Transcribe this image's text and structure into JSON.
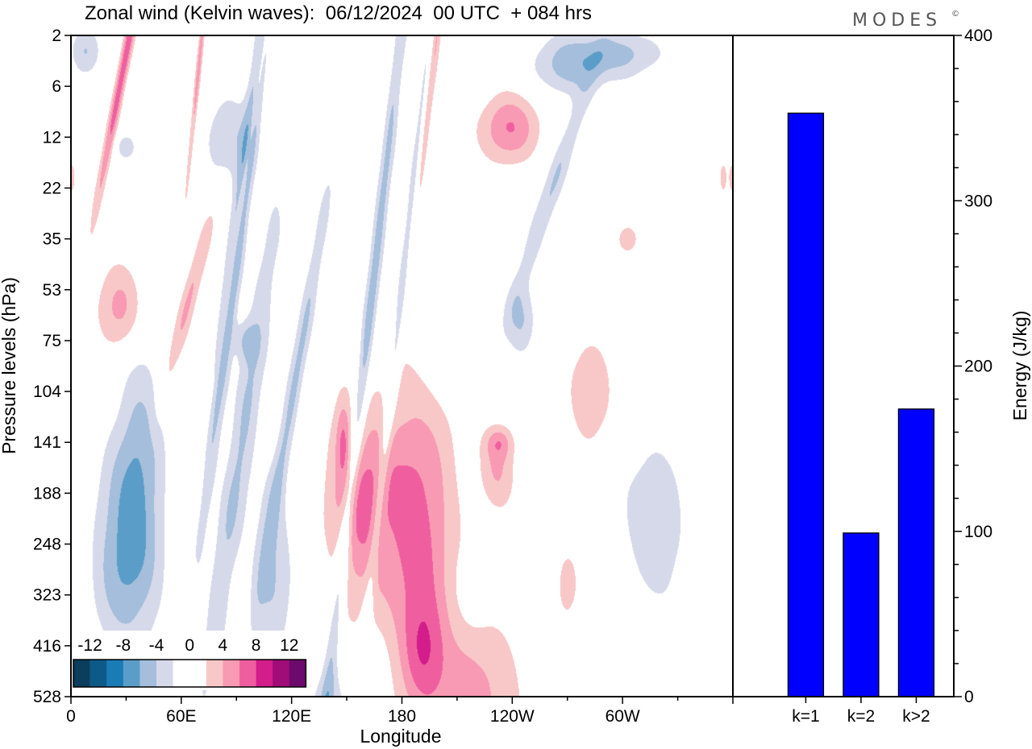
{
  "header": {
    "title": "Zonal wind (Kelvin waves):  06/12/2024  00 UTC  + 084 hrs",
    "brand": "MODES",
    "brand_mark": "©"
  },
  "chart_data": [
    {
      "type": "heatmap",
      "title": "Zonal wind (Kelvin waves):  06/12/2024  00 UTC  + 084 hrs",
      "xlabel": "Longitude",
      "ylabel": "Pressure levels (hPa)",
      "x_ticks": [
        "0",
        "60E",
        "120E",
        "180",
        "120W",
        "60W"
      ],
      "y_ticks": [
        "2",
        "6",
        "12",
        "22",
        "35",
        "53",
        "75",
        "104",
        "141",
        "188",
        "248",
        "323",
        "416",
        "528"
      ],
      "colorbar": {
        "labels": [
          "-12",
          "-8",
          "-4",
          "0",
          "4",
          "8",
          "12"
        ],
        "colors": [
          "#0b3d5c",
          "#0d5a88",
          "#1a7bb5",
          "#5b9dc9",
          "#a4bedb",
          "#d6d9ea",
          "#ffffff",
          "#ffffff",
          "#f8c8c8",
          "#f89ab3",
          "#ef5fa0",
          "#d21d8a",
          "#a00d78",
          "#6d0a6d"
        ]
      },
      "negative_features": [
        {
          "lon": 90,
          "lev": 4.1,
          "w": 19,
          "h": 1.3,
          "tilt": -28,
          "amp": 6.5
        },
        {
          "lon": 38,
          "lev": 9.0,
          "w": 13,
          "h": 2.8,
          "tilt": 0,
          "amp": 5.5
        },
        {
          "lon": 25,
          "lev": 10.2,
          "w": 14,
          "h": 2.0,
          "tilt": 0,
          "amp": 4.5
        },
        {
          "lon": 92,
          "lev": 8.2,
          "w": 23,
          "h": 1.7,
          "tilt": -22,
          "amp": 4.5
        },
        {
          "lon": 160,
          "lev": 6.3,
          "w": 30,
          "h": 1.2,
          "tilt": -32,
          "amp": 5.2
        },
        {
          "lon": 180,
          "lev": 5.2,
          "w": 22,
          "h": 1.0,
          "tilt": -32,
          "amp": 4.5
        },
        {
          "lon": 122,
          "lev": 6.8,
          "w": 20,
          "h": 0.9,
          "tilt": -20,
          "amp": 4.5
        },
        {
          "lon": 110,
          "lev": 10.6,
          "w": 11,
          "h": 1.7,
          "tilt": 0,
          "amp": 4.2
        },
        {
          "lon": 85,
          "lev": 2.0,
          "w": 12,
          "h": 0.9,
          "tilt": 0,
          "amp": 4.0
        },
        {
          "lon": 272,
          "lev": 0.6,
          "w": 22,
          "h": 0.6,
          "tilt": 0,
          "amp": 4.5
        },
        {
          "lon": 300,
          "lev": 0.35,
          "w": 25,
          "h": 0.45,
          "tilt": 0,
          "amp": 4.0
        },
        {
          "lon": 8,
          "lev": 0.3,
          "w": 8,
          "h": 0.5,
          "tilt": 0,
          "amp": 4.5
        },
        {
          "lon": 262,
          "lev": 3.0,
          "w": 22,
          "h": 0.6,
          "tilt": -10,
          "amp": 4.0
        },
        {
          "lon": 318,
          "lev": 9.6,
          "w": 16,
          "h": 1.5,
          "tilt": 0,
          "amp": 4.2
        },
        {
          "lon": 245,
          "lev": 5.6,
          "w": 8,
          "h": 0.7,
          "tilt": 0,
          "amp": 3.7
        },
        {
          "lon": 140,
          "lev": 13.3,
          "w": 10,
          "h": 0.8,
          "tilt": 0,
          "amp": 3.7
        },
        {
          "lon": 30,
          "lev": 2.2,
          "w": 6,
          "h": 0.3,
          "tilt": 0,
          "amp": 3.5
        },
        {
          "lon": 95,
          "lev": 6.0,
          "w": 6,
          "h": 0.4,
          "tilt": 0,
          "amp": 3.5
        }
      ],
      "positive_features": [
        {
          "lon": 187,
          "lev": 9.5,
          "w": 21,
          "h": 2.6,
          "tilt": 0,
          "amp": 7.0
        },
        {
          "lon": 155,
          "lev": 9.2,
          "w": 17,
          "h": 1.9,
          "tilt": 0,
          "amp": 6.0
        },
        {
          "lon": 238,
          "lev": 1.8,
          "w": 17,
          "h": 0.7,
          "tilt": 0,
          "amp": 5.8
        },
        {
          "lon": 28,
          "lev": 0.7,
          "w": 16,
          "h": 0.55,
          "tilt": -18,
          "amp": 7.5
        },
        {
          "lon": 70,
          "lev": 0.4,
          "w": 8,
          "h": 0.6,
          "tilt": -35,
          "amp": 5.2
        },
        {
          "lon": 197,
          "lev": 0.5,
          "w": 16,
          "h": 0.8,
          "tilt": -30,
          "amp": 5.0
        },
        {
          "lon": 217,
          "lev": 13.1,
          "w": 30,
          "h": 1.5,
          "tilt": 0,
          "amp": 4.8
        },
        {
          "lon": 192,
          "lev": 12.0,
          "w": 12,
          "h": 1.1,
          "tilt": 0,
          "amp": 4.5
        },
        {
          "lon": 27,
          "lev": 5.4,
          "w": 13,
          "h": 0.9,
          "tilt": 0,
          "amp": 4.8
        },
        {
          "lon": 64,
          "lev": 5.2,
          "w": 14,
          "h": 0.6,
          "tilt": -12,
          "amp": 4.3
        },
        {
          "lon": 232,
          "lev": 8.5,
          "w": 10,
          "h": 0.8,
          "tilt": 0,
          "amp": 4.3
        },
        {
          "lon": 233,
          "lev": 8.0,
          "w": 7,
          "h": 0.3,
          "tilt": 0,
          "amp": 3.5
        },
        {
          "lon": 92,
          "lev": 3.4,
          "w": 14,
          "h": 0.45,
          "tilt": -25,
          "amp": 3.9
        },
        {
          "lon": 148,
          "lev": 7.9,
          "w": 4,
          "h": 0.8,
          "tilt": 0,
          "amp": 3.6
        },
        {
          "lon": 282,
          "lev": 7.0,
          "w": 12,
          "h": 1.0,
          "tilt": 0,
          "amp": 4.2
        },
        {
          "lon": 270,
          "lev": 10.8,
          "w": 5,
          "h": 0.6,
          "tilt": 0,
          "amp": 3.7
        },
        {
          "lon": 303,
          "lev": 4.0,
          "w": 6,
          "h": 0.3,
          "tilt": 0,
          "amp": 3.7
        },
        {
          "lon": 0,
          "lev": 2.8,
          "w": 2,
          "h": 0.3,
          "tilt": 0,
          "amp": 3.7
        },
        {
          "lon": 355,
          "lev": 2.8,
          "w": 2,
          "h": 0.3,
          "tilt": 0,
          "amp": 3.6
        }
      ]
    },
    {
      "type": "bar",
      "categories": [
        "k=1",
        "k=2",
        "k>2"
      ],
      "values": [
        353,
        99,
        174
      ],
      "ylabel": "Energy (J/kg)",
      "ylim": [
        0,
        400
      ],
      "y_ticks": [
        "0",
        "100",
        "200",
        "300",
        "400"
      ],
      "bar_color": "#0000ff"
    }
  ]
}
